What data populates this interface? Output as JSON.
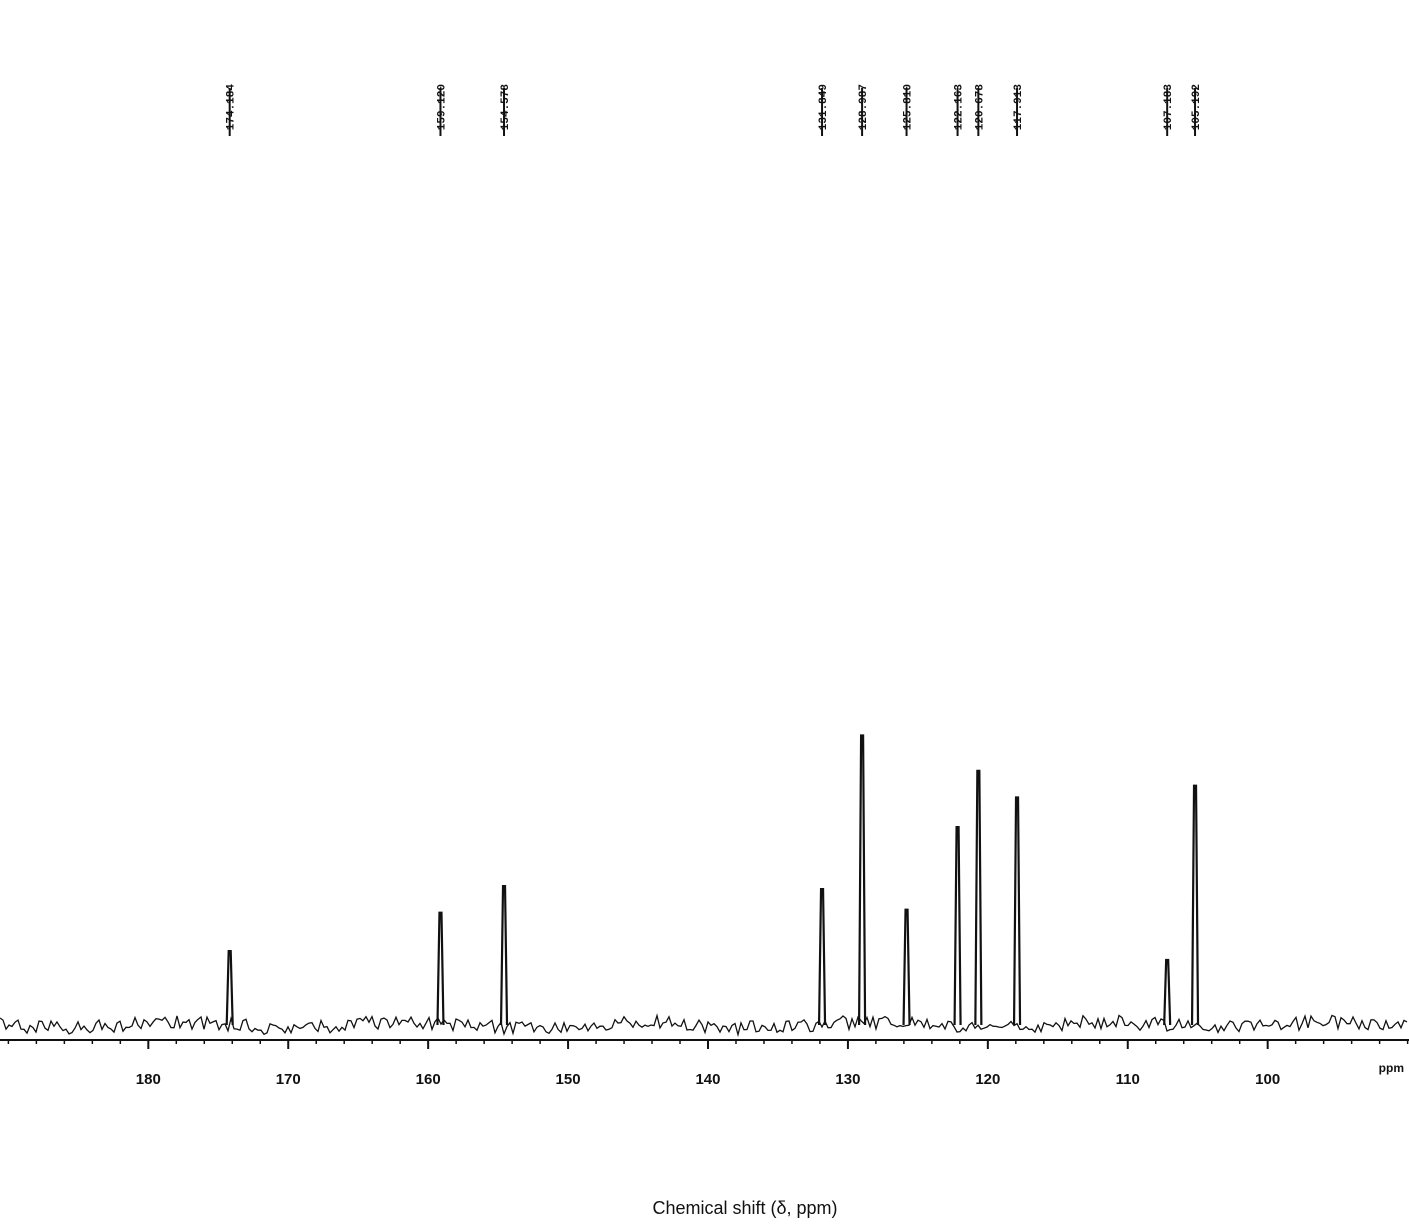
{
  "chart_data": {
    "type": "spectrum",
    "x_label": "Chemical shift (δ, ppm)",
    "unit_label": "ppm",
    "xlim": [
      190.6,
      89.9
    ],
    "xticks": [
      180,
      170,
      160,
      150,
      140,
      130,
      120,
      110,
      100
    ],
    "ylim": [
      0,
      110
    ],
    "color": "#111111",
    "x": [
      174.184,
      159.12,
      154.578,
      131.849,
      128.987,
      125.81,
      122.163,
      120.678,
      117.913,
      107.183,
      105.192
    ],
    "x_labels": [
      "174.184",
      "159.120",
      "154.578",
      "131.849",
      "128.987",
      "125.810",
      "122.163",
      "120.678",
      "117.913",
      "107.183",
      "105.192"
    ],
    "values": [
      25,
      38,
      47,
      46,
      98,
      39,
      67,
      86,
      77,
      22,
      81
    ]
  }
}
